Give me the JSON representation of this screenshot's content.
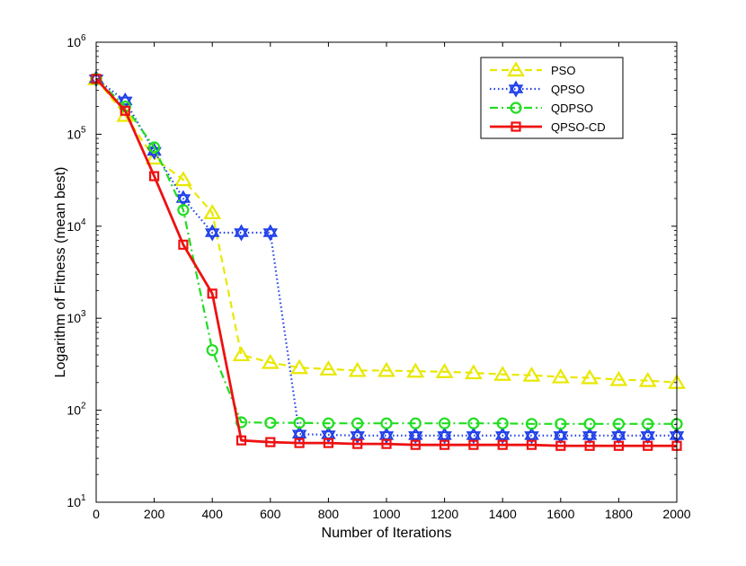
{
  "chart_data": {
    "type": "line",
    "title": "",
    "xlabel": "Number of Iterations",
    "ylabel": "Logarithm of Fitness (mean best)",
    "yscale": "log",
    "xlim": [
      0,
      2000
    ],
    "ylim": [
      10,
      1000000
    ],
    "x_ticks": [
      0,
      200,
      400,
      600,
      800,
      1000,
      1200,
      1400,
      1600,
      1800,
      2000
    ],
    "y_ticks": [
      {
        "base": "10",
        "exp": "1",
        "value": 10
      },
      {
        "base": "10",
        "exp": "2",
        "value": 100
      },
      {
        "base": "10",
        "exp": "3",
        "value": 1000
      },
      {
        "base": "10",
        "exp": "4",
        "value": 10000
      },
      {
        "base": "10",
        "exp": "5",
        "value": 100000
      },
      {
        "base": "10",
        "exp": "6",
        "value": 1000000
      }
    ],
    "grid": false,
    "legend_position": "top-right",
    "x": [
      0,
      100,
      200,
      300,
      400,
      500,
      600,
      700,
      800,
      900,
      1000,
      1100,
      1200,
      1300,
      1400,
      1500,
      1600,
      1700,
      1800,
      1900,
      2000
    ],
    "series": [
      {
        "name": "PSO",
        "color": "#e8e800",
        "marker": "triangle",
        "dash": "dashed",
        "values": [
          400000,
          160000,
          55000,
          32000,
          14000,
          400,
          330,
          290,
          280,
          270,
          270,
          265,
          262,
          255,
          245,
          240,
          230,
          225,
          215,
          210,
          200
        ]
      },
      {
        "name": "QPSO",
        "color": "#1f3fe8",
        "marker": "hexagram",
        "dash": "dotted",
        "values": [
          400000,
          230000,
          65000,
          20000,
          8500,
          8500,
          8500,
          55,
          54,
          53,
          53,
          53,
          53,
          53,
          53,
          53,
          53,
          53,
          53,
          53,
          53
        ]
      },
      {
        "name": "QDPSO",
        "color": "#22dd22",
        "marker": "circle",
        "dash": "dashdot",
        "values": [
          400000,
          200000,
          72000,
          15000,
          450,
          74,
          73,
          73,
          72,
          72,
          72,
          72,
          72,
          72,
          72,
          71,
          71,
          71,
          71,
          71,
          71
        ]
      },
      {
        "name": "QPSO-CD",
        "color": "#ee1111",
        "marker": "square",
        "dash": "solid",
        "values": [
          400000,
          180000,
          35000,
          6300,
          1850,
          47,
          45,
          44,
          44,
          43,
          43,
          42,
          42,
          42,
          42,
          42,
          41,
          41,
          41,
          41,
          41
        ]
      }
    ]
  }
}
